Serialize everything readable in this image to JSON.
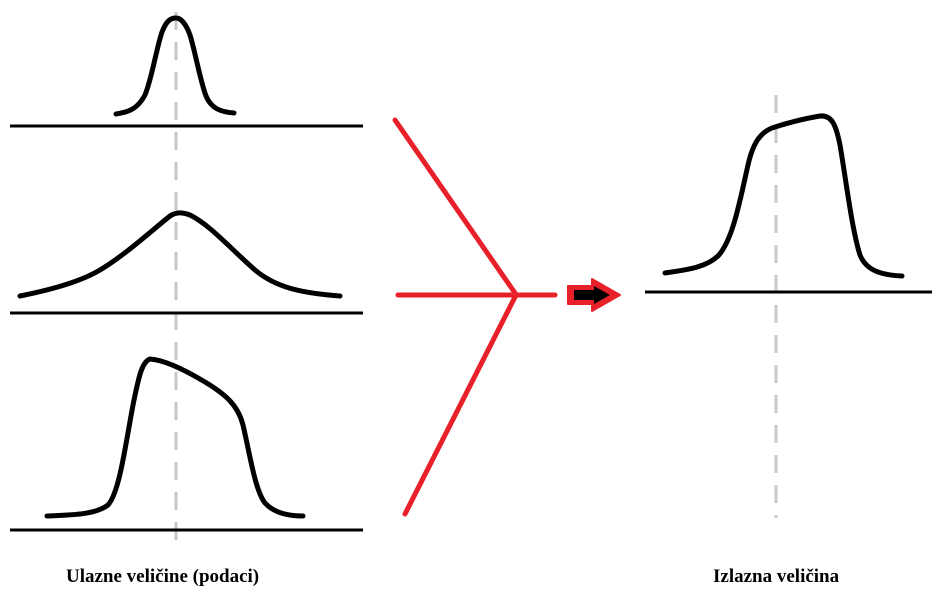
{
  "captions": {
    "input": "Ulazne veličine (podaci)",
    "output": "Izlazna veličina"
  },
  "colors": {
    "curve": "#000000",
    "baseline": "#000000",
    "center_dash": "#c8c8c8",
    "merge_lines": "#e8202a",
    "arrow_fill": "#e8202a",
    "arrow_inner": "#000000"
  },
  "panels": [
    {
      "role": "input",
      "shape": "narrow-peak"
    },
    {
      "role": "input",
      "shape": "wide-bell"
    },
    {
      "role": "input",
      "shape": "skewed-plateau"
    },
    {
      "role": "output",
      "shape": "plateau"
    }
  ]
}
